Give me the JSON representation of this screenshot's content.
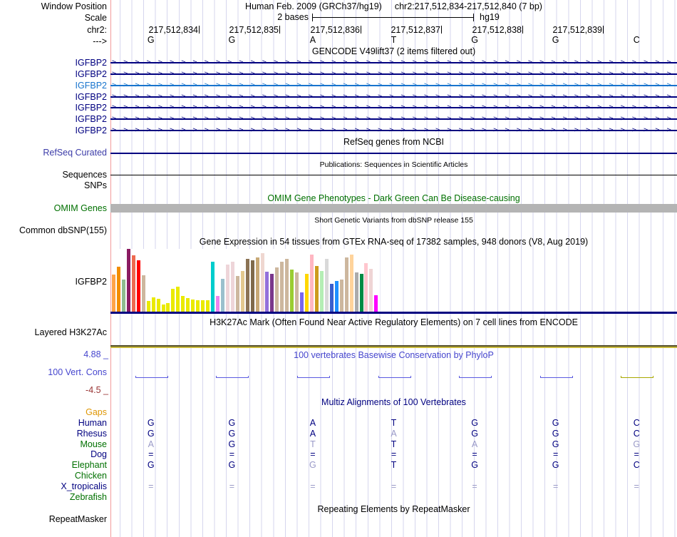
{
  "header": {
    "window_position_label": "Window Position",
    "assembly_title": "Human Feb. 2009 (GRCh37/hg19)",
    "position_title": "chr2:217,512,834-217,512,840 (7 bp)",
    "scale_label": "Scale",
    "scale_value": "2 bases",
    "assembly_name": "hg19",
    "chrom_label": "chr2:",
    "strand_label": "--->",
    "coordinates": [
      "217,512,834",
      "217,512,835",
      "217,512,836",
      "217,512,837",
      "217,512,838",
      "217,512,839"
    ],
    "bases": [
      "G",
      "G",
      "A",
      "T",
      "G",
      "G",
      "C"
    ]
  },
  "tracks": {
    "gencode": {
      "title": "GENCODE V49lift37 (2 items filtered out)",
      "strand_arrow_glyph": ">",
      "rows": [
        {
          "gene": "IGFBP2",
          "color": "#000080"
        },
        {
          "gene": "IGFBP2",
          "color": "#000080"
        },
        {
          "gene": "IGFBP2",
          "color": "#1874CD"
        },
        {
          "gene": "IGFBP2",
          "color": "#000080"
        },
        {
          "gene": "IGFBP2",
          "color": "#000080"
        },
        {
          "gene": "IGFBP2",
          "color": "#000080"
        },
        {
          "gene": "IGFBP2",
          "color": "#000080"
        }
      ]
    },
    "refseq": {
      "title": "RefSeq genes from NCBI",
      "label": "RefSeq Curated"
    },
    "publications": {
      "title": "Publications: Sequences in Scientific Articles",
      "label": "Sequences"
    },
    "snps": {
      "label": "SNPs"
    },
    "omim": {
      "title": "OMIM Gene Phenotypes - Dark Green Can Be Disease-causing",
      "label": "OMIM Genes"
    },
    "dbsnp": {
      "title": "Short Genetic Variants from dbSNP release 155",
      "label": "Common dbSNP(155)"
    },
    "gtex": {
      "label": "IGFBP2"
    },
    "h3k27ac": {
      "title": "H3K27Ac Mark (Often Found Near Active Regulatory Elements) on 7 cell lines from ENCODE",
      "label": "Layered H3K27Ac"
    },
    "phylop": {
      "title": "100 vertebrates Basewise Conservation by PhyloP",
      "label": "100 Vert. Cons",
      "max_label": "4.88 _",
      "min_label": "-4.5 _",
      "dashes": [
        "#5A5AE0",
        "#5A5AE0",
        "#5A5AE0",
        "#5A5AE0",
        "#5A5AE0",
        "#5A5AE0",
        "#A8A800"
      ]
    },
    "multiz": {
      "title": "Multiz Alignments of 100 Vertebrates",
      "rows": [
        {
          "species": "Gaps",
          "label_color": "#DF9705",
          "cells": null
        },
        {
          "species": "Human",
          "label_color": "#000080",
          "cells": [
            "G",
            "G",
            "A",
            "T",
            "G",
            "G",
            "C"
          ],
          "dim": [
            0,
            0,
            0,
            0,
            0,
            0,
            0
          ]
        },
        {
          "species": "Rhesus",
          "label_color": "#000080",
          "cells": [
            "G",
            "G",
            "A",
            "A",
            "G",
            "G",
            "C"
          ],
          "dim": [
            0,
            0,
            0,
            1,
            0,
            0,
            0
          ]
        },
        {
          "species": "Mouse",
          "label_color": "#007000",
          "cells": [
            "A",
            "G",
            "T",
            "T",
            "A",
            "G",
            "G"
          ],
          "dim": [
            1,
            0,
            1,
            0,
            1,
            0,
            1
          ]
        },
        {
          "species": "Dog",
          "label_color": "#000080",
          "cells": [
            "=",
            "=",
            "=",
            "=",
            "=",
            "=",
            "="
          ],
          "dim": [
            0,
            0,
            0,
            0,
            0,
            0,
            0
          ]
        },
        {
          "species": "Elephant",
          "label_color": "#007000",
          "cells": [
            "G",
            "G",
            "G",
            "T",
            "G",
            "G",
            "C"
          ],
          "dim": [
            0,
            0,
            1,
            0,
            0,
            0,
            0
          ]
        },
        {
          "species": "Chicken",
          "label_color": "#007000",
          "cells": null
        },
        {
          "species": "X_tropicalis",
          "label_color": "#000080",
          "cells": [
            "=",
            "=",
            "=",
            "=",
            "=",
            "=",
            "="
          ],
          "dim": [
            1,
            1,
            1,
            1,
            1,
            1,
            1
          ]
        },
        {
          "species": "Zebrafish",
          "label_color": "#007000",
          "cells": null
        }
      ]
    },
    "repeatmasker": {
      "title": "Repeating Elements by RepeatMasker",
      "label": "RepeatMasker"
    }
  },
  "chart_data": {
    "type": "bar",
    "title": "Gene Expression in 54 tissues from GTEx RNA-seq of 17382 samples, 948 donors (V8, Aug 2019)",
    "gene": "IGFBP2",
    "n_bars": 54,
    "note": "Tissue names are not shown in the image; values are relative bar heights as % of the tallest bar.",
    "values": [
      59,
      72,
      51,
      100,
      90,
      82,
      58,
      17,
      23,
      20,
      11,
      14,
      36,
      40,
      25,
      22,
      19,
      18,
      18,
      18,
      80,
      25,
      52,
      75,
      80,
      57,
      65,
      84,
      82,
      86,
      93,
      64,
      60,
      70,
      80,
      84,
      67,
      63,
      31,
      60,
      91,
      73,
      65,
      84,
      44,
      49,
      51,
      86,
      91,
      63,
      60,
      77,
      68,
      26
    ],
    "bar_colors": [
      "#FFA347",
      "#F28D00",
      "#8FBC8F",
      "#8B1C62",
      "#EE6A50",
      "#FF0000",
      "#CDB79E",
      "#EAEA00",
      "#EAEA00",
      "#EAEA00",
      "#EAEA00",
      "#EAEA00",
      "#EAEA00",
      "#EAEA00",
      "#EAEA00",
      "#EAEA00",
      "#EAEA00",
      "#EAEA00",
      "#EAEA00",
      "#EAEA00",
      "#00CDCD",
      "#EE82EE",
      "#9AC0CD",
      "#EED5D9",
      "#EED5D9",
      "#CDB79E",
      "#E3C98F",
      "#8B7355",
      "#7F6A4B",
      "#C8A977",
      "#EFD7D0",
      "#9370DB",
      "#7A378B",
      "#CDB79E",
      "#CDB79E",
      "#CDB79E",
      "#9ACD32",
      "#CDB79E",
      "#7A67EE",
      "#FFD700",
      "#FFB6C1",
      "#CD9B1D",
      "#B4EEB4",
      "#D9D9D9",
      "#3A5FCD",
      "#1E90FF",
      "#CDB79E",
      "#CDB79E",
      "#FFD39B",
      "#ABABAB",
      "#008B45",
      "#FFC6CE",
      "#EFD5D5",
      "#FF00FF"
    ],
    "baseline_color": "#000080"
  },
  "colors": {
    "navy": "#000080",
    "highlight_blue": "#1874CD",
    "refseq_label": "#3B3BA8",
    "omim_green": "#007000",
    "phylop_blue": "#4646CE",
    "phylop_min_red": "#993434",
    "gaps_orange": "#DF9705",
    "species_green": "#007000",
    "dim_letter": "#9A9AC8",
    "guide_line": "#D6D6EE",
    "boundary_line": "#F29B9B",
    "omim_bar_gray": "#B4B4B4",
    "h3k_line_dark": "#55502A",
    "h3k_line_olive": "#C9B93B",
    "sequences_line": "#000000"
  }
}
